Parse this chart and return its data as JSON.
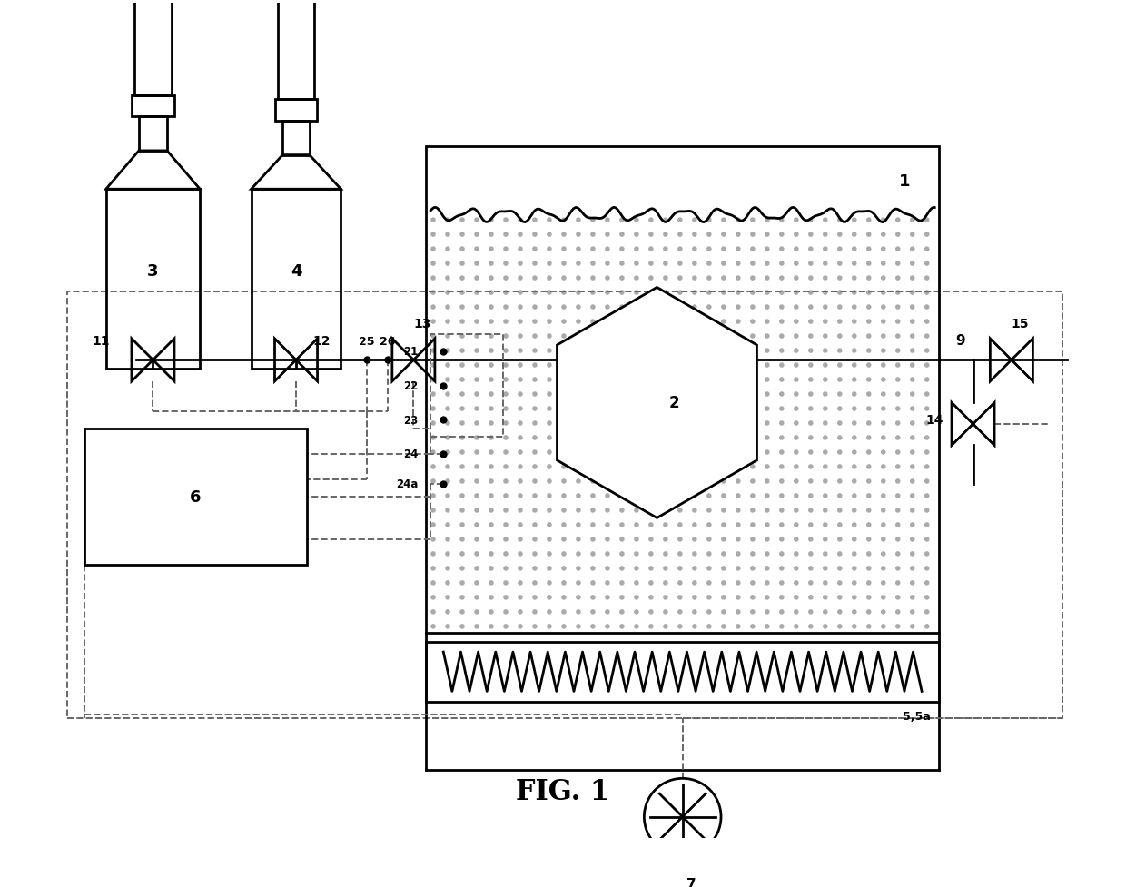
{
  "fig_width": 12.4,
  "fig_height": 9.78,
  "bg_color": "#ffffff",
  "title": "FIG. 1",
  "line_color": "#000000",
  "dashed_color": "#666666",
  "lw_main": 2.0,
  "lw_dash": 1.4
}
